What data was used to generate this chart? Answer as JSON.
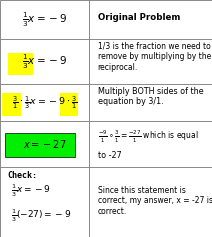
{
  "bg_color": "#ffffff",
  "border_color": "#888888",
  "highlight_green": "#00ee00",
  "highlight_yellow": "#ffff00",
  "col_split": 0.42,
  "row_boundaries": [
    1.0,
    0.835,
    0.645,
    0.49,
    0.295,
    0.0
  ],
  "font_main": 6.5,
  "font_small": 5.8
}
